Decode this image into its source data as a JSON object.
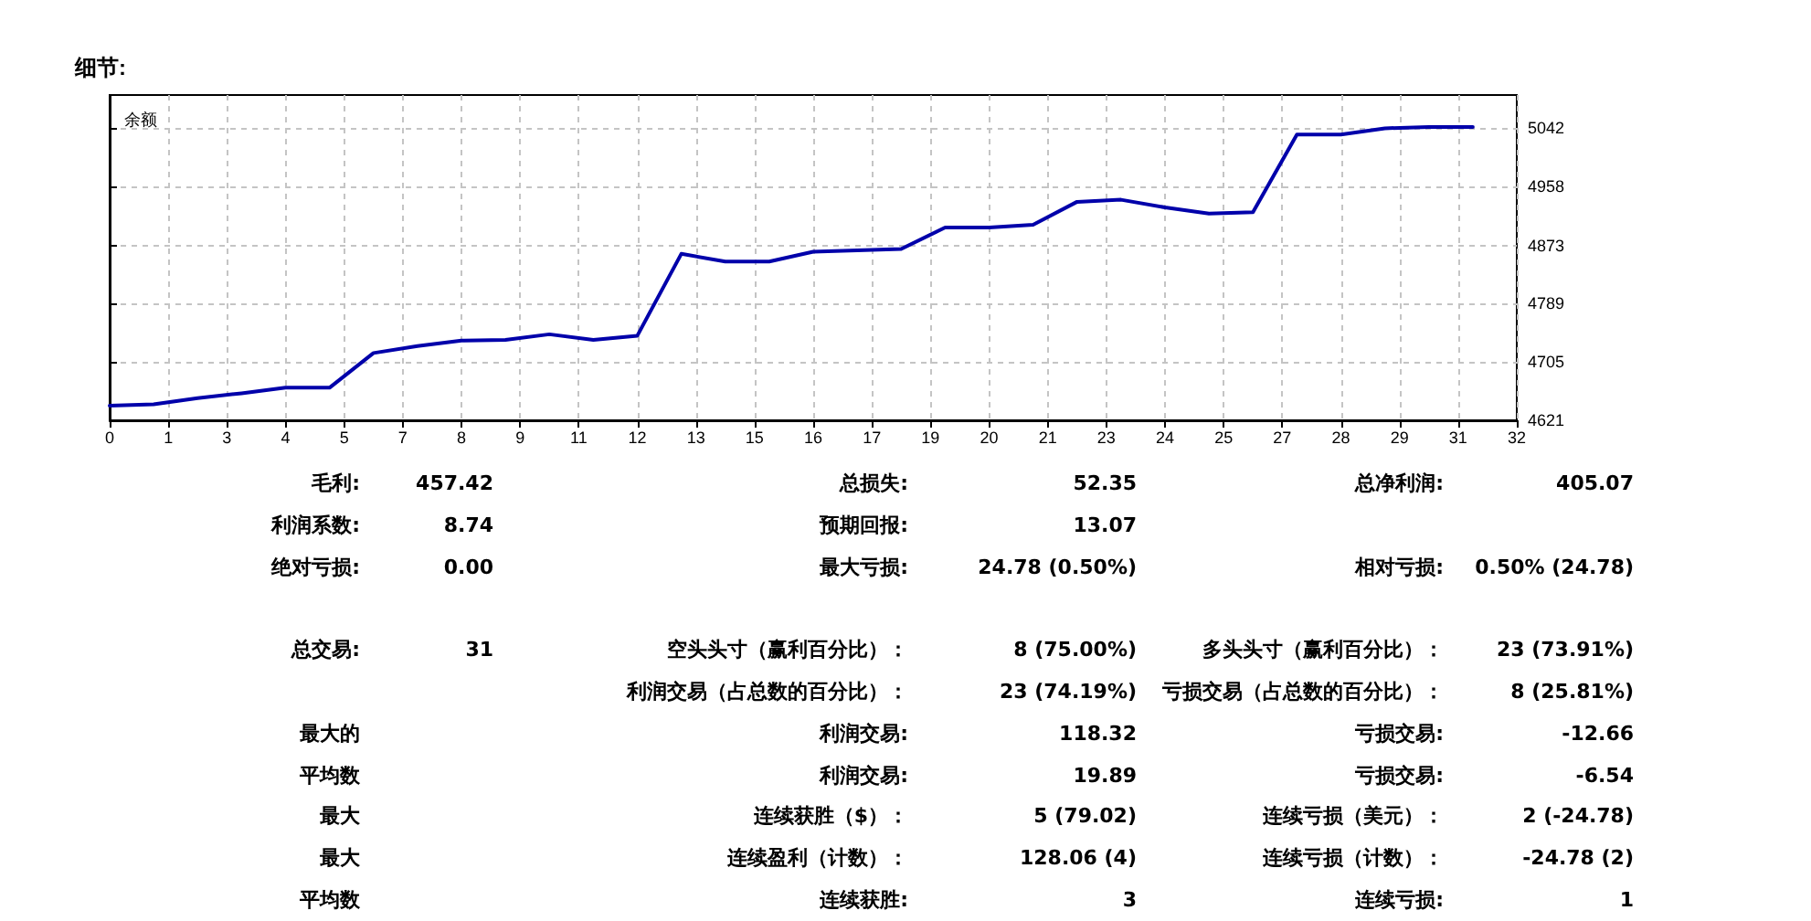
{
  "chart_data": [
    {
      "type": "line",
      "title": "细节:",
      "subtitle": "余额",
      "color": "#0000aa",
      "marker": "none",
      "grid": true,
      "x": [
        0,
        1,
        2,
        3,
        4,
        5,
        6,
        7,
        8,
        9,
        10,
        11,
        12,
        13,
        14,
        15,
        16,
        17,
        18,
        19,
        20,
        21,
        22,
        23,
        24,
        25,
        26,
        27,
        28,
        29,
        30,
        31
      ],
      "values": [
        4642,
        4644,
        4653,
        4660,
        4668,
        4668,
        4718,
        4728,
        4736,
        4737,
        4745,
        4737,
        4743,
        4861,
        4850,
        4850,
        4864,
        4866,
        4868,
        4899,
        4899,
        4903,
        4936,
        4939,
        4928,
        4919,
        4921,
        5033,
        5033,
        5042,
        5044,
        5044
      ],
      "xlim": [
        0,
        32
      ],
      "ylim": [
        4621,
        5090
      ],
      "xticks": [
        0,
        {
          "value": 1.333,
          "label": "1"
        },
        {
          "value": 2.667,
          "label": "3"
        },
        4,
        {
          "value": 5.333,
          "label": "5"
        },
        {
          "value": 6.667,
          "label": "7"
        },
        8,
        {
          "value": 9.333,
          "label": "9"
        },
        {
          "value": 10.667,
          "label": "11"
        },
        12,
        {
          "value": 13.333,
          "label": "13"
        },
        {
          "value": 14.667,
          "label": "15"
        },
        16,
        {
          "value": 17.333,
          "label": "17"
        },
        {
          "value": 18.667,
          "label": "19"
        },
        20,
        {
          "value": 21.333,
          "label": "21"
        },
        {
          "value": 22.667,
          "label": "23"
        },
        24,
        {
          "value": 25.333,
          "label": "25"
        },
        {
          "value": 26.667,
          "label": "27"
        },
        28,
        {
          "value": 29.333,
          "label": "29"
        },
        {
          "value": 30.667,
          "label": "31"
        },
        32
      ],
      "yticks": [
        4621,
        4705,
        4789,
        4873,
        4958,
        5042
      ]
    },
    {
      "type": "other",
      "annotations": [
        "毛利:",
        "457.42",
        "总损失:",
        "52.35",
        "总净利润:",
        "405.07",
        "利润系数:",
        "8.74",
        "预期回报:",
        "13.07",
        null,
        null,
        "绝对亏损:",
        "0.00",
        "最大亏损:",
        "24.78 (0.50%)",
        "相对亏损:",
        "0.50% (24.78)",
        null,
        null,
        null,
        null,
        null,
        null,
        "总交易:",
        "31",
        "空头头寸（赢利百分比）：",
        "8 (75.00%)",
        "多头头寸（赢利百分比）：",
        "23 (73.91%)",
        null,
        null,
        "利润交易（占总数的百分比）：",
        "23 (74.19%)",
        "亏损交易（占总数的百分比）：",
        "8 (25.81%)",
        "最大的",
        null,
        "利润交易:",
        "118.32",
        "亏损交易:",
        "-12.66",
        "平均数",
        null,
        "利润交易:",
        "19.89",
        "亏损交易:",
        "-6.54",
        "最大",
        null,
        "连续获胜（$）：",
        "5 (79.02)",
        "连续亏损（美元）：",
        "2 (-24.78)",
        "最大",
        null,
        "连续盈利（计数）：",
        "128.06 (4)",
        "连续亏损（计数）：",
        "-24.78 (2)",
        "平均数",
        null,
        "连续获胜:",
        "3",
        "连续亏损:",
        "1"
      ]
    }
  ]
}
